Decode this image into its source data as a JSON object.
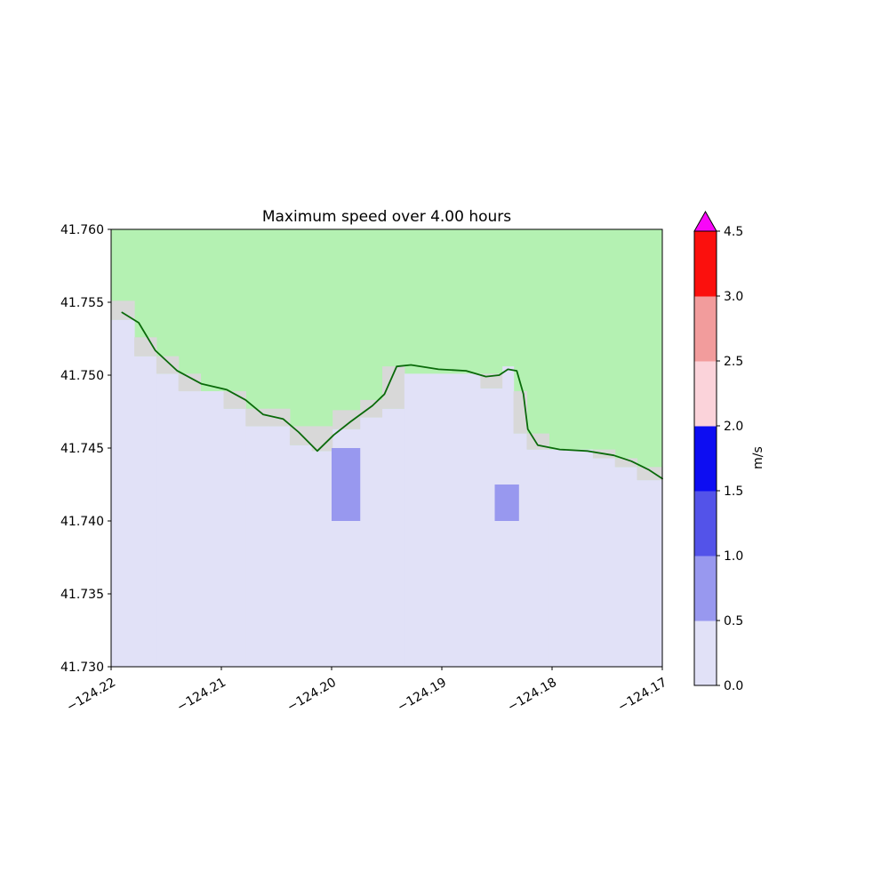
{
  "chart_data": {
    "type": "heatmap",
    "title": "Maximum speed over 4.00 hours",
    "xlabel": "",
    "ylabel": "",
    "xlim": [
      -124.22,
      -124.17
    ],
    "ylim": [
      41.73,
      41.76
    ],
    "x_ticks": [
      -124.22,
      -124.21,
      -124.2,
      -124.19,
      -124.18,
      -124.17
    ],
    "x_tick_labels": [
      "−124.22",
      "−124.21",
      "−124.20",
      "−124.19",
      "−124.18",
      "−124.17"
    ],
    "x_tick_rotation_deg": 30,
    "y_ticks": [
      41.76,
      41.755,
      41.75,
      41.745,
      41.74,
      41.735,
      41.73
    ],
    "y_tick_labels": [
      "41.760",
      "41.755",
      "41.750",
      "41.745",
      "41.740",
      "41.735",
      "41.730"
    ],
    "colorbar": {
      "label": "m/s",
      "orientation": "vertical",
      "boundaries": [
        0.0,
        0.5,
        1.0,
        1.5,
        2.0,
        2.5,
        3.0,
        4.5
      ],
      "tick_labels": [
        "0.0",
        "0.5",
        "1.0",
        "1.5",
        "2.0",
        "2.5",
        "3.0",
        "4.5"
      ],
      "segment_colors": [
        "#e1e1f7",
        "#9898ef",
        "#5353e9",
        "#0d0df2",
        "#fbd3da",
        "#f29c9c",
        "#fb100d"
      ],
      "extend": "max",
      "extend_color": "#f807f8"
    },
    "colors": {
      "land": "#b4f1b2",
      "water_background": "#e1e1f7",
      "masked_cell": "#d8d8d8",
      "coastline": "#0a6a0a"
    },
    "speed_cells": [
      {
        "lon0": -124.2,
        "lon1": -124.1974,
        "lat0": 41.74,
        "lat1": 41.745,
        "speed_range": "0.5–1.0"
      },
      {
        "lon0": -124.1852,
        "lon1": -124.183,
        "lat0": 41.74,
        "lat1": 41.7425,
        "speed_range": "0.5–1.0"
      }
    ],
    "coast_steps": [
      [
        -124.22,
        -124.2179,
        41.7551,
        41.7538
      ],
      [
        -124.2179,
        -124.2159,
        41.7526,
        41.7513
      ],
      [
        -124.2159,
        -124.2139,
        41.7513,
        41.7501
      ],
      [
        -124.2139,
        -124.2119,
        41.7501,
        41.7489
      ],
      [
        -124.2119,
        -124.2098,
        41.7489,
        41.7489
      ],
      [
        -124.2098,
        -124.2078,
        41.7489,
        41.7477
      ],
      [
        -124.2078,
        -124.2058,
        41.7477,
        41.7465
      ],
      [
        -124.2058,
        -124.2038,
        41.7477,
        41.7465
      ],
      [
        -124.2038,
        -124.2018,
        41.7465,
        41.7452
      ],
      [
        -124.2018,
        -124.1999,
        41.7465,
        41.7448
      ],
      [
        -124.1999,
        -124.1974,
        41.7476,
        41.7463
      ],
      [
        -124.1974,
        -124.1954,
        41.7483,
        41.7471
      ],
      [
        -124.1954,
        -124.1934,
        41.7506,
        41.7477
      ],
      [
        -124.1934,
        -124.1865,
        41.7501,
        41.7501
      ],
      [
        -124.1865,
        -124.1845,
        41.7501,
        41.7491
      ],
      [
        -124.1845,
        -124.1835,
        41.7506,
        41.7506
      ],
      [
        -124.1835,
        -124.1823,
        41.7489,
        41.746
      ],
      [
        -124.1823,
        -124.1803,
        41.746,
        41.7449
      ],
      [
        -124.1803,
        -124.1763,
        41.7449,
        41.7449
      ],
      [
        -124.1763,
        -124.1743,
        41.7449,
        41.7443
      ],
      [
        -124.1743,
        -124.1723,
        41.7443,
        41.7437
      ],
      [
        -124.1723,
        -124.17,
        41.7437,
        41.7428
      ]
    ],
    "coastline": [
      [
        -124.219,
        41.7543
      ],
      [
        -124.2175,
        41.7536
      ],
      [
        -124.216,
        41.7517
      ],
      [
        -124.214,
        41.7503
      ],
      [
        -124.2118,
        41.7494
      ],
      [
        -124.2095,
        41.749
      ],
      [
        -124.2078,
        41.7483
      ],
      [
        -124.2062,
        41.7473
      ],
      [
        -124.2044,
        41.747
      ],
      [
        -124.203,
        41.7461
      ],
      [
        -124.2013,
        41.7448
      ],
      [
        -124.1998,
        41.7459
      ],
      [
        -124.1983,
        41.7468
      ],
      [
        -124.1963,
        41.7479
      ],
      [
        -124.1952,
        41.7487
      ],
      [
        -124.1941,
        41.7506
      ],
      [
        -124.1928,
        41.7507
      ],
      [
        -124.1903,
        41.7504
      ],
      [
        -124.1878,
        41.7503
      ],
      [
        -124.186,
        41.7499
      ],
      [
        -124.1848,
        41.75
      ],
      [
        -124.184,
        41.7504
      ],
      [
        -124.1832,
        41.7503
      ],
      [
        -124.1826,
        41.7487
      ],
      [
        -124.1822,
        41.7463
      ],
      [
        -124.1813,
        41.7452
      ],
      [
        -124.1793,
        41.7449
      ],
      [
        -124.1768,
        41.7448
      ],
      [
        -124.1744,
        41.7445
      ],
      [
        -124.1728,
        41.7441
      ],
      [
        -124.1712,
        41.7435
      ],
      [
        -124.17,
        41.7429
      ]
    ]
  }
}
